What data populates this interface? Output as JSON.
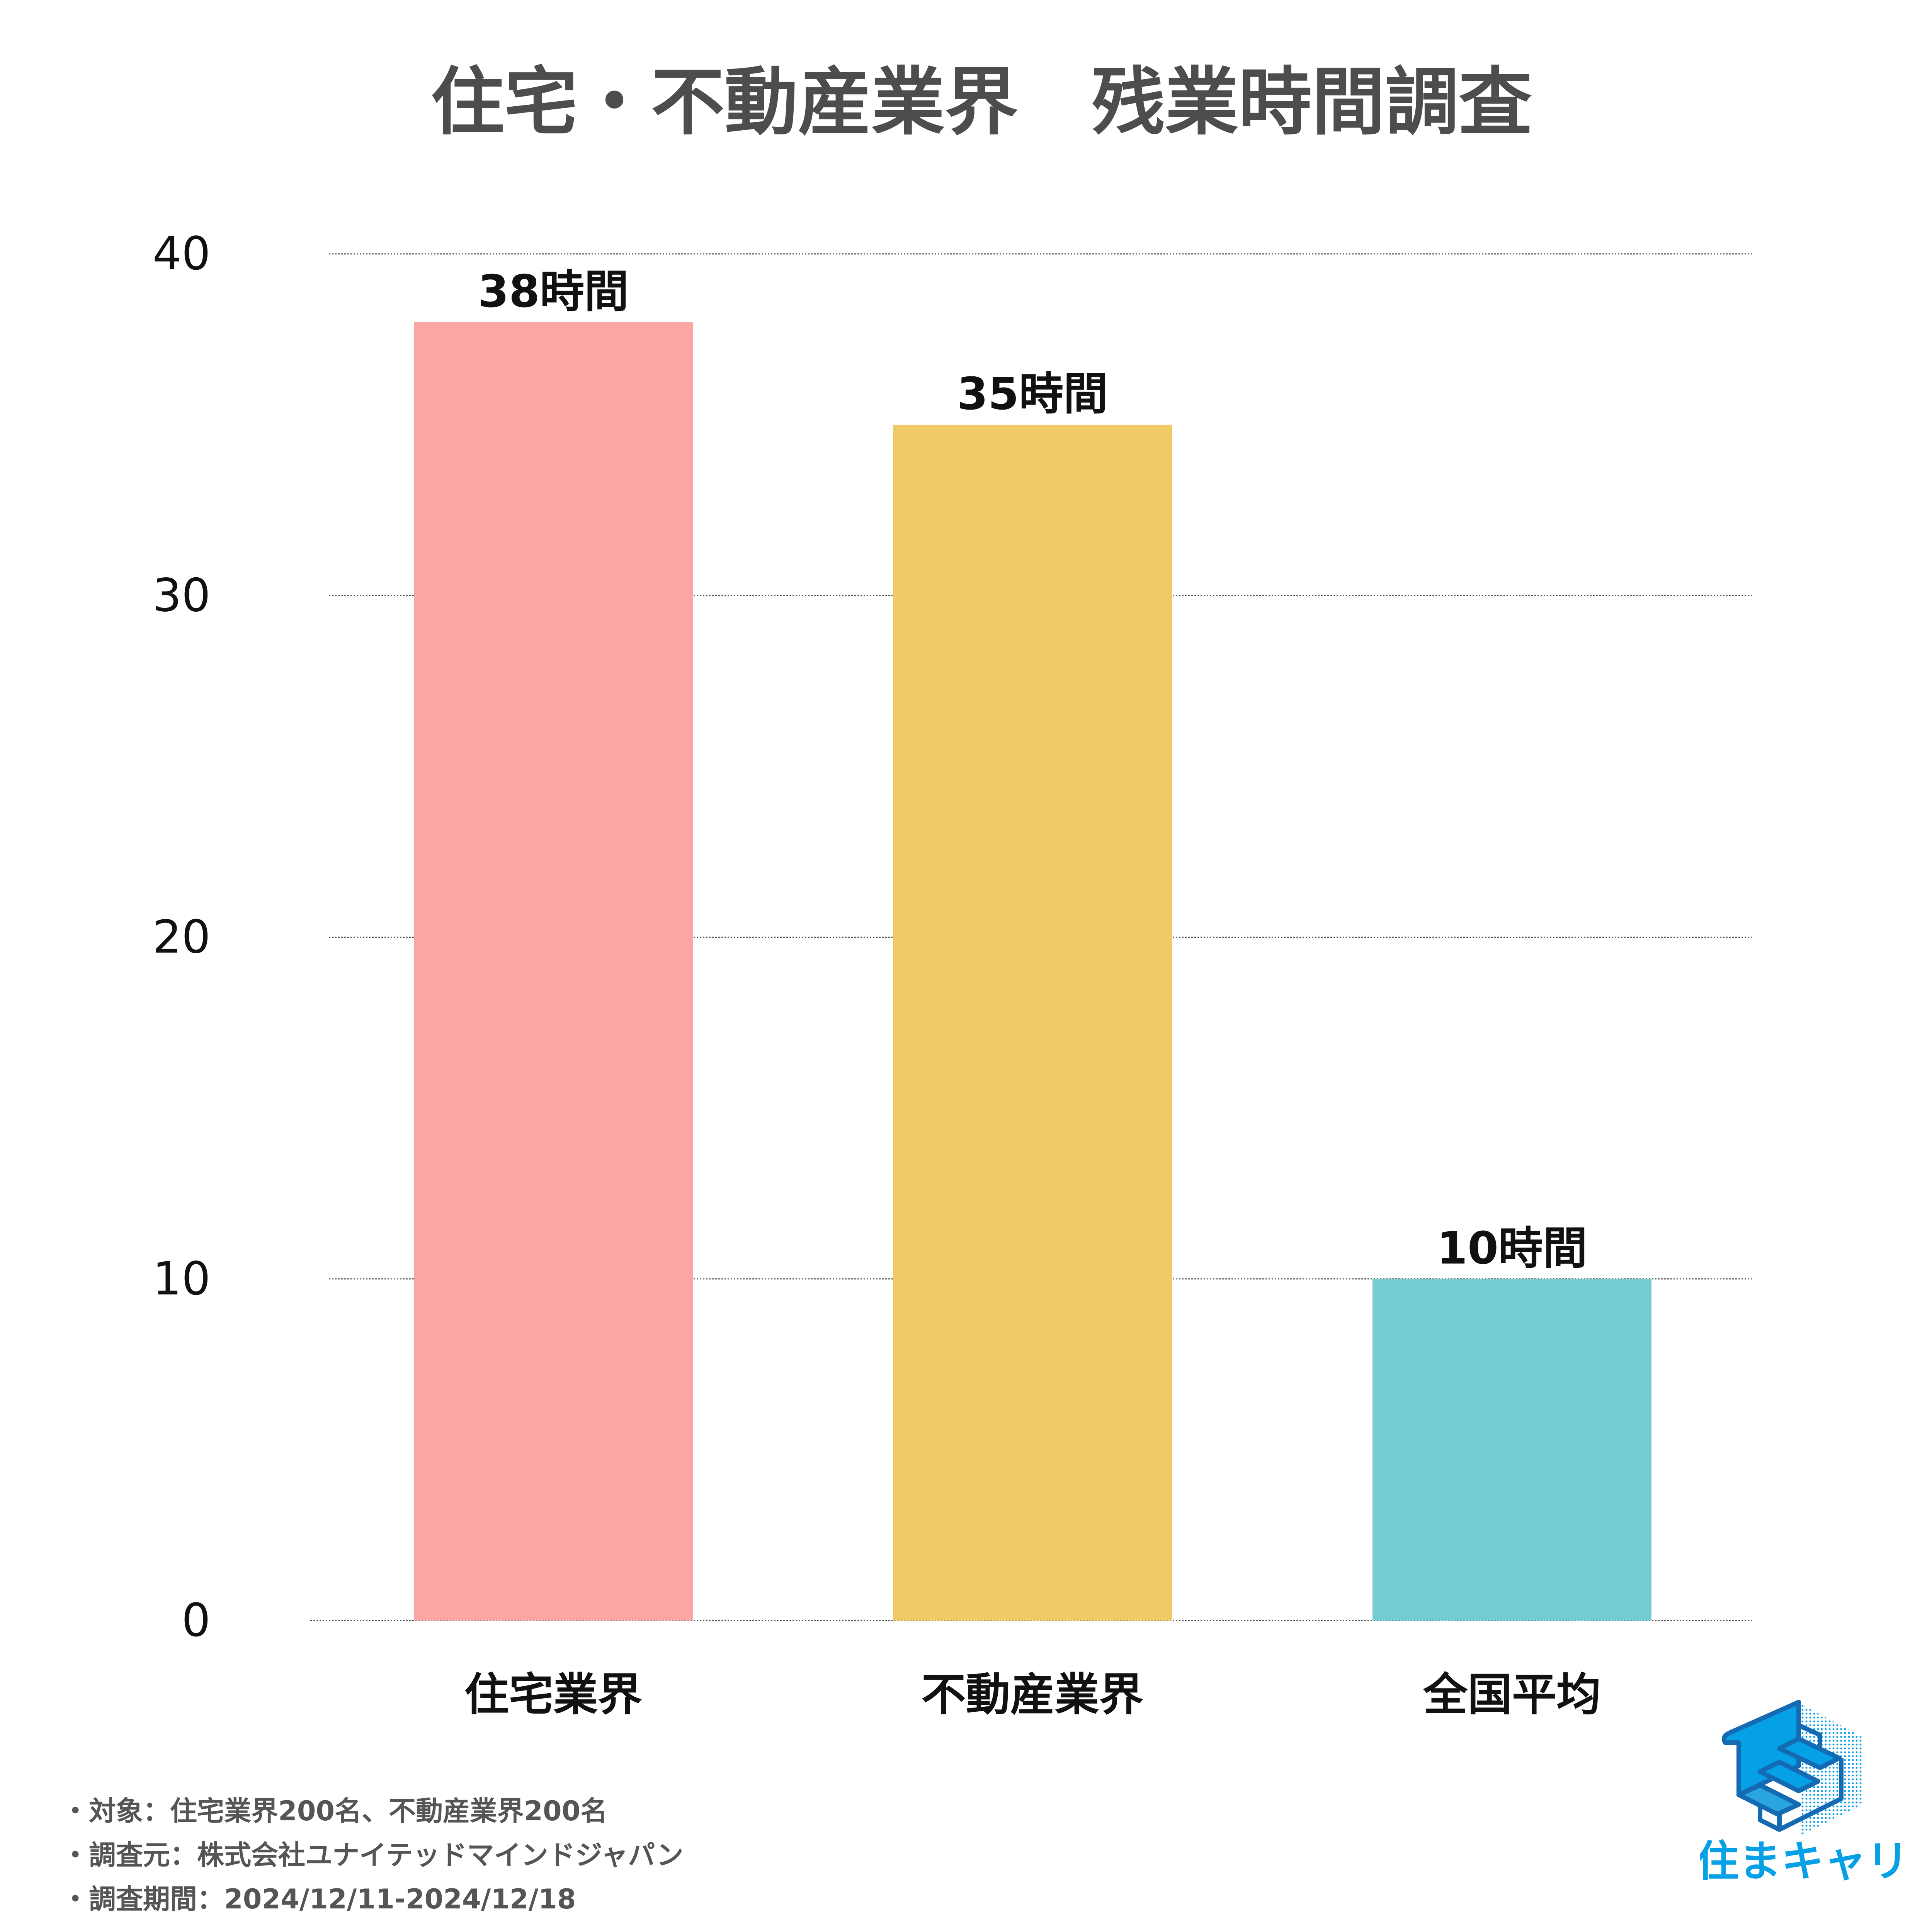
{
  "chart_data": {
    "type": "bar",
    "title": "住宅・不動産業界　残業時間調査",
    "categories": [
      "住宅業界",
      "不動産業界",
      "全国平均"
    ],
    "values": [
      38,
      35,
      10
    ],
    "value_labels": [
      "38時間",
      "35時間",
      "10時間"
    ],
    "colors": [
      "#FBA5A5",
      "#F0CA67",
      "#72CCD2"
    ],
    "ylim": [
      0,
      40
    ],
    "yticks": [
      0,
      10,
      20,
      30,
      40
    ],
    "ytick_labels": [
      "0",
      "10",
      "20",
      "30",
      "40"
    ],
    "xlabel": "",
    "ylabel": "",
    "grid": true
  },
  "footnotes": [
    "・対象：住宅業界200名、不動産業界200名",
    "・調査元：株式会社ユナイテッドマインドジャパン",
    "・調査期間：2024/12/11-2024/12/18"
  ],
  "logo": {
    "text": "住まキャリ",
    "color": "#05A0E6",
    "dark": "#146BB4"
  }
}
